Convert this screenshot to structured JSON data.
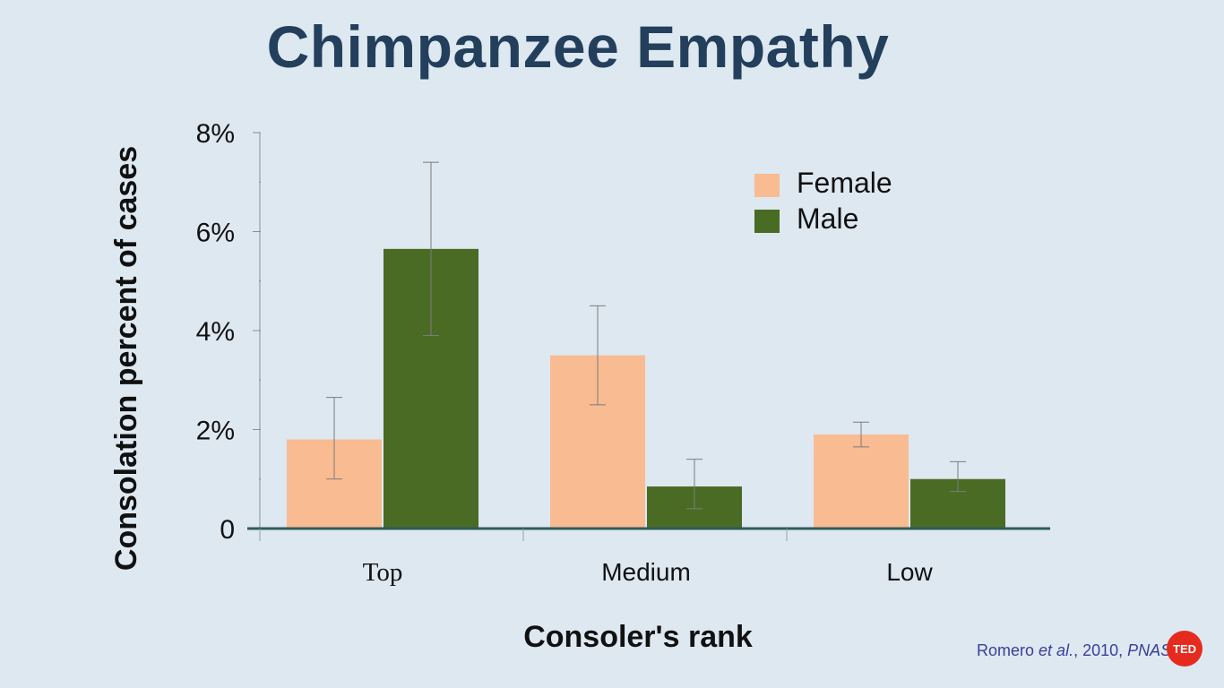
{
  "slide": {
    "title": "Chimpanzee Empathy"
  },
  "chart_data": {
    "type": "bar",
    "xlabel": "Consoler's rank",
    "ylabel": "Consolation percent of cases",
    "categories": [
      "Top",
      "Medium",
      "Low"
    ],
    "ylim": [
      0,
      8
    ],
    "yticks": [
      0,
      2,
      4,
      6,
      8
    ],
    "ytick_labels": [
      "0",
      "2%",
      "4%",
      "6%",
      "8%"
    ],
    "legend_position": "top-right",
    "grid": false,
    "series": [
      {
        "name": "Female",
        "color": "#f9bb91",
        "values": [
          1.8,
          3.5,
          1.9
        ],
        "error_low": [
          1.0,
          2.5,
          1.65
        ],
        "error_high": [
          2.65,
          4.5,
          2.15
        ]
      },
      {
        "name": "Male",
        "color": "#4a6b24",
        "values": [
          5.65,
          0.85,
          1.0
        ],
        "error_low": [
          3.9,
          0.4,
          0.75
        ],
        "error_high": [
          7.4,
          1.4,
          1.35
        ]
      }
    ]
  },
  "credit": {
    "authors": "Romero",
    "etal": "et al.",
    "year": ", 2010, ",
    "journal": "PNAS"
  },
  "logo": {
    "text": "TED"
  }
}
